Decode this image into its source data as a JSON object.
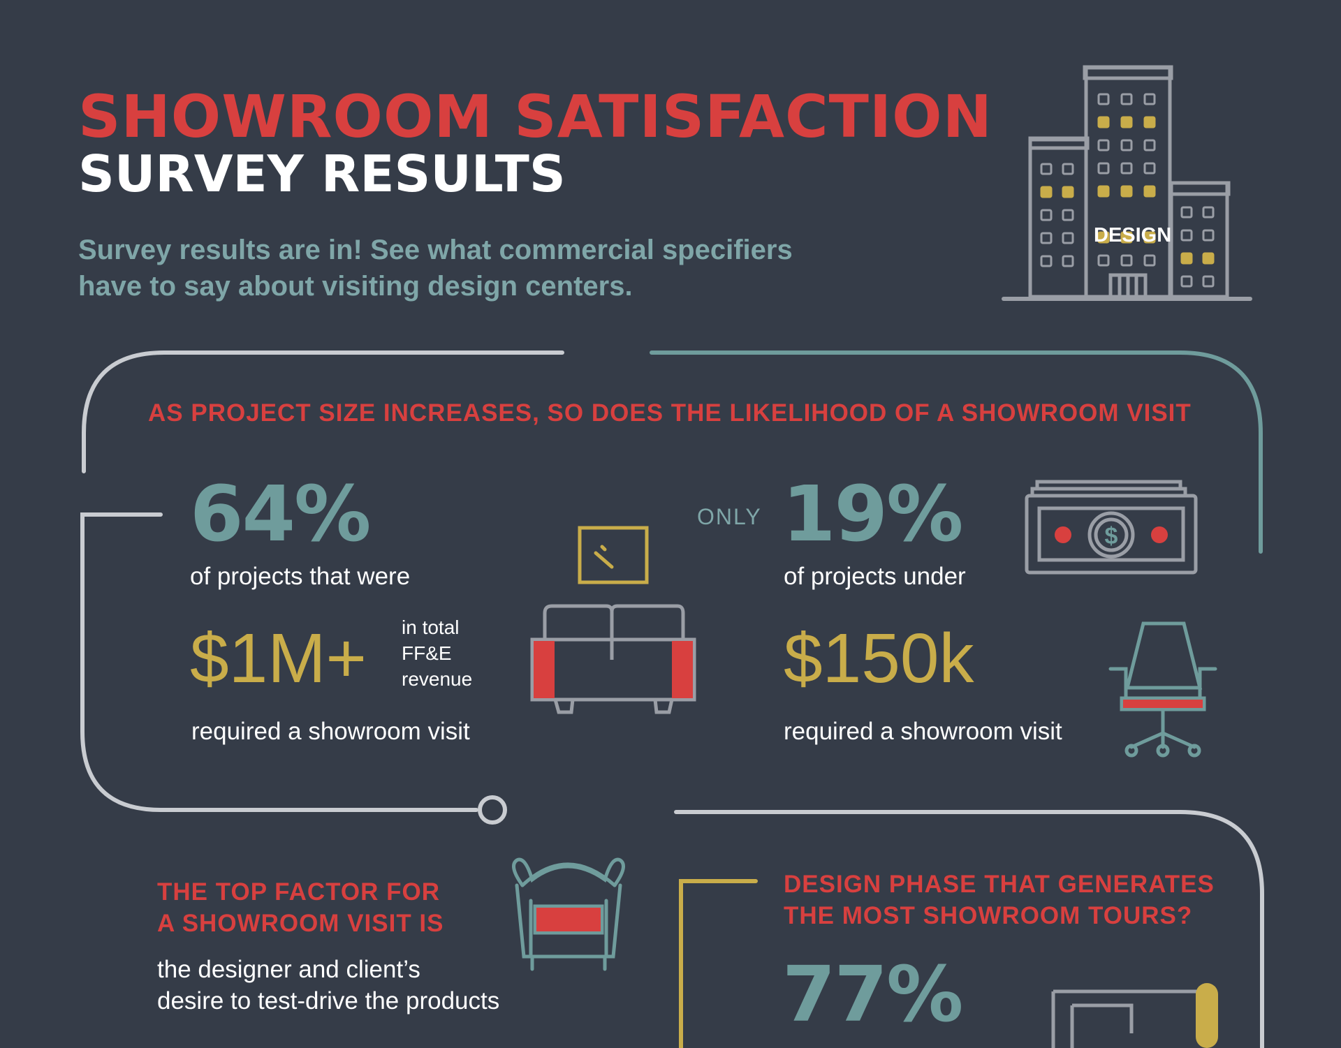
{
  "header": {
    "title_line1": "SHOWROOM SATISFACTION",
    "title_line2": "SURVEY RESULTS",
    "subtitle_line1": "Survey results are in! See what commercial specifiers",
    "subtitle_line2": "have to say about visiting design centers.",
    "building_label": "DESIGN"
  },
  "section1": {
    "heading": "AS PROJECT SIZE INCREASES, SO DOES THE LIKELIHOOD OF A SHOWROOM VISIT",
    "left": {
      "percent": "64%",
      "line1": "of projects that were",
      "amount": "$1M+",
      "note_line1": "in total",
      "note_line2": "FF&E",
      "note_line3": "revenue",
      "line2": "required a showroom visit"
    },
    "right": {
      "prefix": "ONLY",
      "percent": "19%",
      "line1": "of projects under",
      "amount": "$150k",
      "line2": "required a showroom visit"
    }
  },
  "section2": {
    "heading_line1": "THE TOP FACTOR FOR",
    "heading_line2": "A SHOWROOM VISIT IS",
    "body_line1": "the designer and client’s",
    "body_line2": "desire to test-drive the products"
  },
  "section3": {
    "heading_line1": "DESIGN PHASE THAT GENERATES",
    "heading_line2": "THE MOST SHOWROOM TOURS?",
    "percent": "77%"
  },
  "colors": {
    "background": "#353c48",
    "red": "#d8403f",
    "teal": "#6f9c9c",
    "gold": "#c9ad4a",
    "gray": "#9a9ea6",
    "white": "#ffffff"
  },
  "icons": [
    "building-icon",
    "sofa-icon",
    "frame-icon",
    "money-icon",
    "office-chair-icon",
    "armchair-icon",
    "blueprint-icon"
  ]
}
